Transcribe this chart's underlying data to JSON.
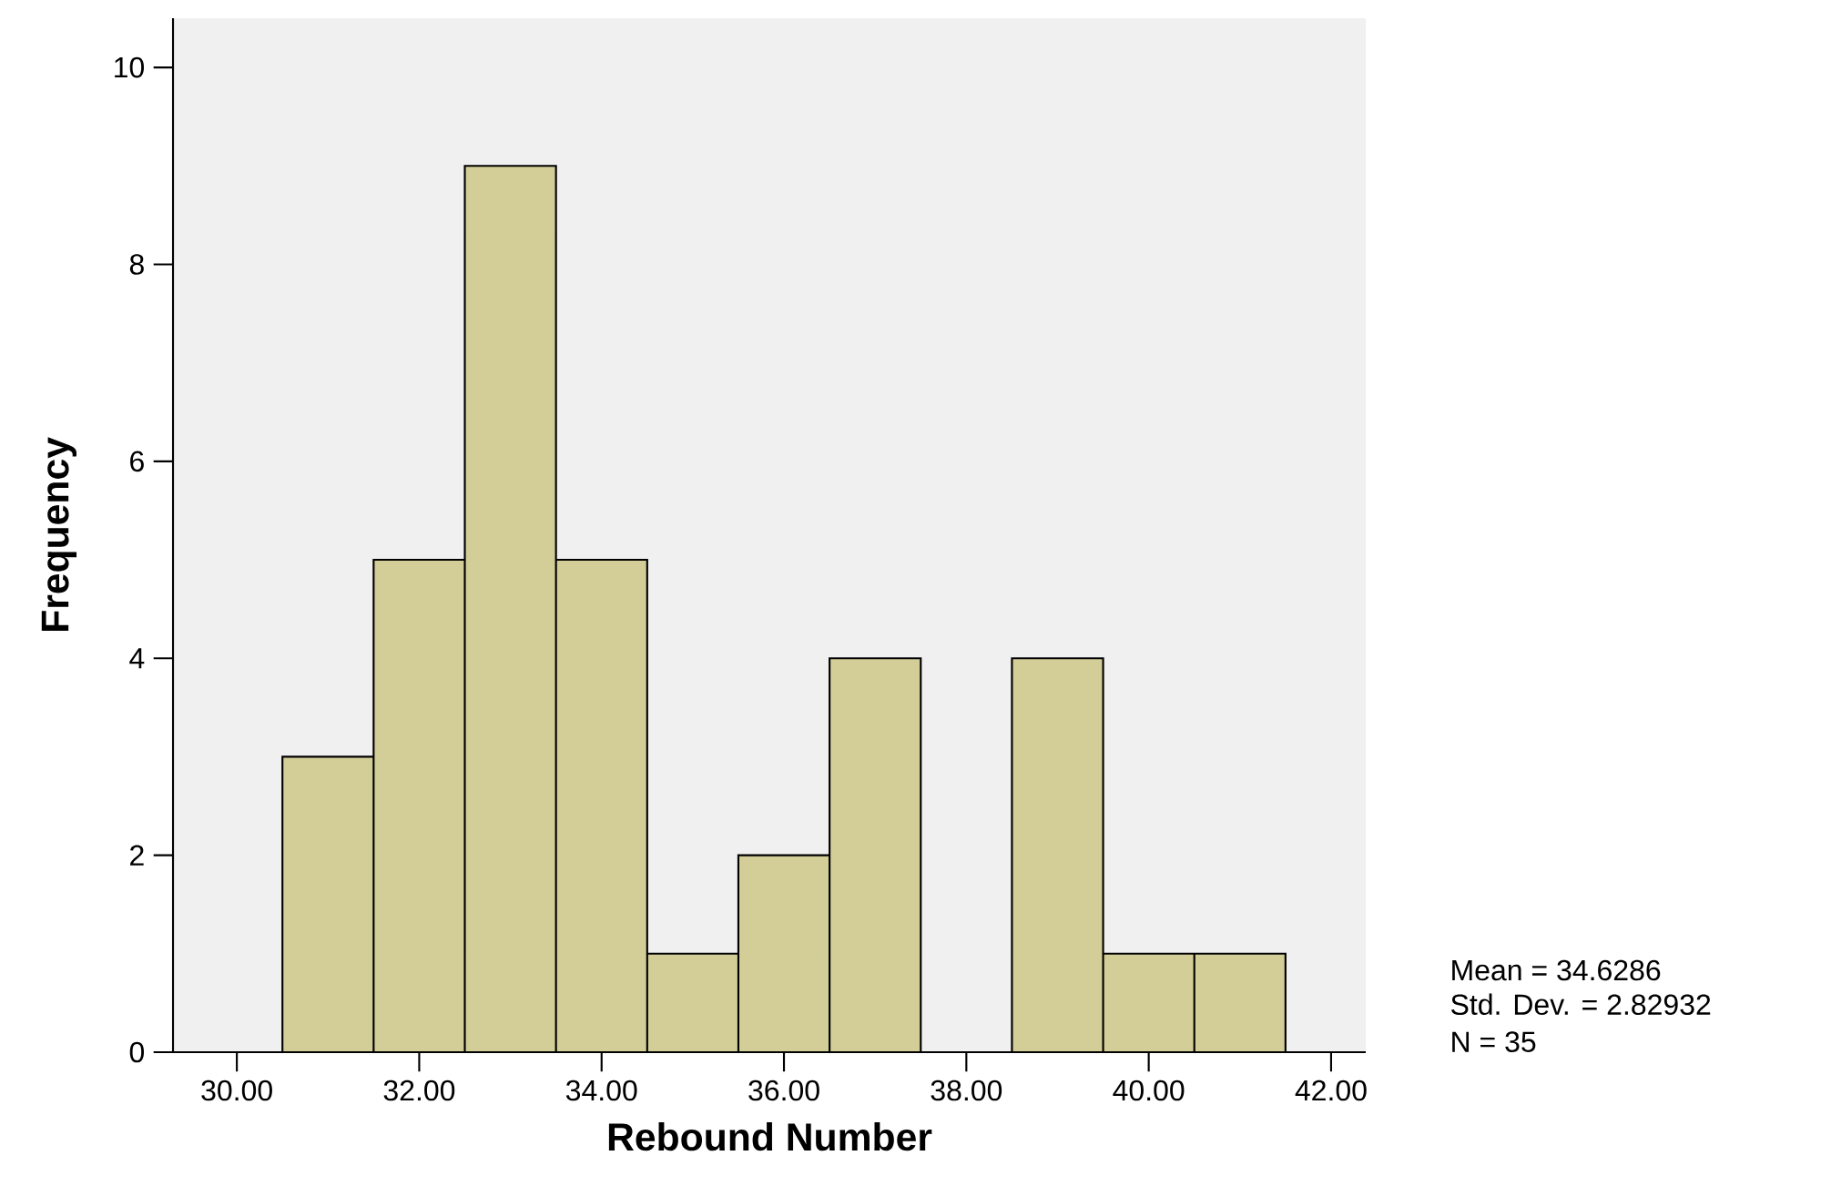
{
  "chart_data": {
    "type": "histogram",
    "bins": [
      30.5,
      31.5,
      32.5,
      33.5,
      34.5,
      35.5,
      36.5,
      37.5,
      38.5,
      39.5,
      40.5,
      41.5
    ],
    "values": [
      3,
      5,
      9,
      5,
      1,
      2,
      4,
      0,
      4,
      1,
      1
    ],
    "color": "#d3ce97",
    "xlim": [
      29.3,
      42.38
    ],
    "ylim": [
      0,
      10.5
    ],
    "xticks": [
      {
        "value": 30,
        "label": "30.00"
      },
      {
        "value": 32,
        "label": "32.00"
      },
      {
        "value": 34,
        "label": "34.00"
      },
      {
        "value": 36,
        "label": "36.00"
      },
      {
        "value": 38,
        "label": "38.00"
      },
      {
        "value": 40,
        "label": "40.00"
      },
      {
        "value": 42,
        "label": "42.00"
      }
    ],
    "yticks": [
      0,
      2,
      4,
      6,
      8,
      10
    ],
    "xlabel": "Rebound Number",
    "ylabel": "Frequency",
    "annotations": [
      "Mean = 34.6286",
      "Std. Dev. = 2.82932",
      "N = 35"
    ]
  }
}
